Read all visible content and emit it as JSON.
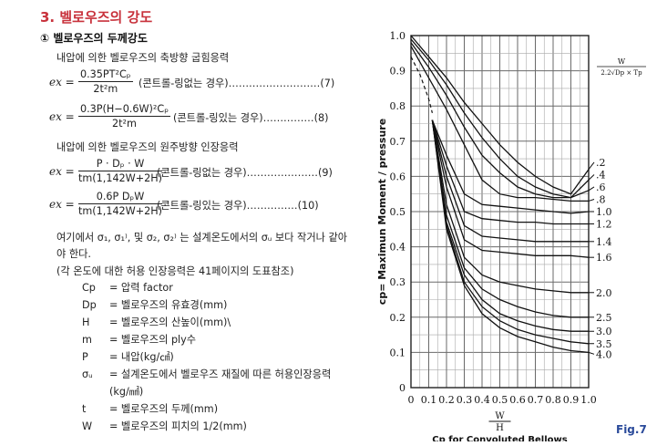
{
  "section": {
    "title": "3. 벨로우즈의 강도",
    "subtitle": "① 벨로우즈의 두께강도",
    "heading_axial": "내압에 의한 벨로우즈의 축방향 굽힘응력",
    "heading_hoop": "내압에 의한 벨로우즈의 원주방향 인장응력",
    "ex_label": "ex =",
    "formulas": [
      {
        "num": "0.35PT²Cₚ",
        "den": "2t²m",
        "cond": "(콘트롤-링없는 경우)………………………(7)"
      },
      {
        "num": "0.3P(H−0.6W)²Cₚ",
        "den": "2t²m",
        "cond": "(콘트롤-링있는 경우)……………(8)"
      },
      {
        "num": "P · Dₚ · W",
        "den": "tm(1,142W+2H)",
        "cond": "(콘트롤-링없는 경우)…………………(9)"
      },
      {
        "num": "0.6P DₚW",
        "den": "tm(1,142W+2H)",
        "cond": "(콘트롤-링있는 경우)……………(10)"
      }
    ],
    "note1": "여기에서 σ₁, σ₁⁾, 및 σ₂, σ₂⁾ 는 설계온도에서의 σᵤ 보다 작거나 같아",
    "note2": "야 한다.",
    "note3": "(각 온도에 대한 허용 인장응력은 41페이지의 도표참조)",
    "definitions": [
      {
        "sym": "Cp",
        "desc": "= 압력 factor"
      },
      {
        "sym": "Dp",
        "desc": "= 벨로우즈의 유효경(mm)"
      },
      {
        "sym": "H",
        "desc": "= 벨로우즈의 산높이(mm)\\"
      },
      {
        "sym": "m",
        "desc": "= 벨로우즈의 ply수"
      },
      {
        "sym": "P",
        "desc": "= 내압(kg/㎠)"
      },
      {
        "sym": "σᵤ",
        "desc": "= 설계온도에서 벨로우즈 재질에 따른 허용인장응력"
      },
      {
        "sym": "",
        "desc": "(kg/㎟)"
      },
      {
        "sym": "t",
        "desc": "= 벨로우즈의 두께(mm)"
      },
      {
        "sym": "W",
        "desc": "= 벨로우즈의 피치의 1/2(mm)"
      }
    ]
  },
  "figure_label": "Fig.7",
  "chart_data": {
    "type": "line",
    "ylabel": "cp= Maximun Moment / pressure",
    "xlabel_fraction_num": "W",
    "xlabel_fraction_den": "H",
    "xlabel": "Cp for Convoluted Bellows",
    "legend_title_num": "W",
    "legend_title_den": "2.2√Dp × Tp",
    "xlim": [
      0,
      1.0
    ],
    "ylim": [
      0,
      1.0
    ],
    "x_ticks": [
      "0",
      "0.1",
      "0.2",
      "0.3",
      "0.4",
      "0.5",
      "0.6",
      "0.7",
      "0.8",
      "0.9",
      "1.0"
    ],
    "y_ticks": [
      "0",
      "0.1",
      "0.2",
      "0.3",
      "0.4",
      "0.5",
      "0.6",
      "0.7",
      "0.8",
      "0.9",
      "1.0"
    ],
    "grid": true,
    "dashed_series": [
      {
        "name": "",
        "x": [
          0.0,
          0.05,
          0.1,
          0.12
        ],
        "y": [
          0.94,
          0.89,
          0.82,
          0.78
        ]
      }
    ],
    "series": [
      {
        "name": ".2",
        "x": [
          0.0,
          0.1,
          0.2,
          0.3,
          0.4,
          0.5,
          0.6,
          0.7,
          0.8,
          0.9,
          1.0
        ],
        "y": [
          1.0,
          0.94,
          0.88,
          0.81,
          0.75,
          0.69,
          0.64,
          0.6,
          0.57,
          0.55,
          0.62
        ]
      },
      {
        "name": ".4",
        "x": [
          0.0,
          0.1,
          0.2,
          0.3,
          0.4,
          0.5,
          0.6,
          0.7,
          0.8,
          0.9,
          1.0
        ],
        "y": [
          0.99,
          0.93,
          0.86,
          0.78,
          0.71,
          0.65,
          0.6,
          0.57,
          0.55,
          0.54,
          0.59
        ]
      },
      {
        "name": ".6",
        "x": [
          0.0,
          0.1,
          0.2,
          0.3,
          0.4,
          0.5,
          0.6,
          0.7,
          0.8,
          0.9,
          1.0
        ],
        "y": [
          0.98,
          0.91,
          0.83,
          0.74,
          0.66,
          0.61,
          0.57,
          0.55,
          0.54,
          0.54,
          0.56
        ]
      },
      {
        "name": ".8",
        "x": [
          0.0,
          0.1,
          0.2,
          0.3,
          0.4,
          0.5,
          0.6,
          0.7,
          0.8,
          0.9,
          1.0
        ],
        "y": [
          0.97,
          0.88,
          0.79,
          0.69,
          0.59,
          0.55,
          0.54,
          0.54,
          0.535,
          0.53,
          0.53
        ]
      },
      {
        "name": "1.0",
        "x": [
          0.12,
          0.2,
          0.3,
          0.4,
          0.5,
          0.6,
          0.7,
          0.8,
          0.9,
          1.0
        ],
        "y": [
          0.76,
          0.66,
          0.55,
          0.52,
          0.515,
          0.51,
          0.505,
          0.5,
          0.495,
          0.5
        ]
      },
      {
        "name": "1.2",
        "x": [
          0.12,
          0.2,
          0.3,
          0.4,
          0.5,
          0.6,
          0.7,
          0.8,
          0.9,
          1.0
        ],
        "y": [
          0.76,
          0.63,
          0.5,
          0.48,
          0.475,
          0.47,
          0.47,
          0.465,
          0.465,
          0.465
        ]
      },
      {
        "name": "1.4",
        "x": [
          0.12,
          0.2,
          0.3,
          0.4,
          0.5,
          0.6,
          0.7,
          0.8,
          0.9,
          1.0
        ],
        "y": [
          0.76,
          0.6,
          0.46,
          0.43,
          0.425,
          0.42,
          0.415,
          0.415,
          0.415,
          0.415
        ]
      },
      {
        "name": "1.6",
        "x": [
          0.12,
          0.2,
          0.3,
          0.4,
          0.5,
          0.6,
          0.7,
          0.8,
          0.9,
          1.0
        ],
        "y": [
          0.76,
          0.57,
          0.42,
          0.39,
          0.385,
          0.38,
          0.375,
          0.375,
          0.375,
          0.37
        ]
      },
      {
        "name": "2.0",
        "x": [
          0.12,
          0.2,
          0.3,
          0.4,
          0.5,
          0.6,
          0.7,
          0.8,
          0.9,
          1.0
        ],
        "y": [
          0.76,
          0.52,
          0.37,
          0.32,
          0.3,
          0.29,
          0.28,
          0.275,
          0.27,
          0.27
        ]
      },
      {
        "name": "2.5",
        "x": [
          0.12,
          0.2,
          0.3,
          0.4,
          0.5,
          0.6,
          0.7,
          0.8,
          0.9,
          1.0
        ],
        "y": [
          0.76,
          0.49,
          0.34,
          0.28,
          0.25,
          0.23,
          0.215,
          0.205,
          0.2,
          0.2
        ]
      },
      {
        "name": "3.0",
        "x": [
          0.12,
          0.2,
          0.3,
          0.4,
          0.5,
          0.6,
          0.7,
          0.8,
          0.9,
          1.0
        ],
        "y": [
          0.76,
          0.47,
          0.32,
          0.25,
          0.21,
          0.19,
          0.175,
          0.165,
          0.16,
          0.16
        ]
      },
      {
        "name": "3.5",
        "x": [
          0.12,
          0.2,
          0.3,
          0.4,
          0.5,
          0.6,
          0.7,
          0.8,
          0.9,
          1.0
        ],
        "y": [
          0.76,
          0.46,
          0.3,
          0.23,
          0.19,
          0.165,
          0.15,
          0.14,
          0.13,
          0.125
        ]
      },
      {
        "name": "4.0",
        "x": [
          0.12,
          0.2,
          0.3,
          0.4,
          0.5,
          0.6,
          0.7,
          0.8,
          0.9,
          1.0
        ],
        "y": [
          0.76,
          0.45,
          0.29,
          0.21,
          0.17,
          0.145,
          0.13,
          0.115,
          0.105,
          0.1
        ]
      }
    ]
  }
}
